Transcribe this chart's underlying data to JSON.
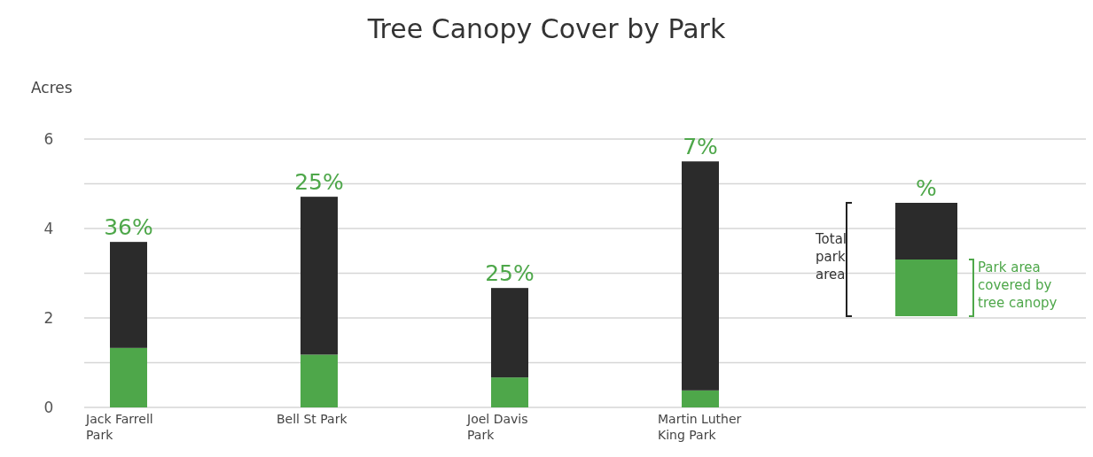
{
  "chart_data": {
    "type": "bar",
    "title": "Tree Canopy Cover by Park",
    "ylabel": "Acres",
    "stacked": true,
    "categories": [
      "Jack Farrell Park",
      "Bell St Park",
      "Joel Davis Park",
      "Martin Luther King Park"
    ],
    "series": [
      {
        "name": "Park area covered by tree canopy",
        "color": "#4ea74a",
        "values": [
          1.33,
          1.18,
          0.67,
          0.38
        ]
      },
      {
        "name": "Total park area",
        "color": "#2b2b2b",
        "values": [
          2.37,
          3.53,
          2.0,
          5.12
        ]
      }
    ],
    "ylim": [
      0,
      6
    ],
    "yticks": [
      0,
      {
        "value": 1,
        "label": null
      },
      2,
      {
        "value": 3,
        "label": null
      },
      4,
      {
        "value": 5,
        "label": null
      },
      6
    ],
    "grid": "y",
    "legend": "right",
    "annotations": [
      "%",
      {
        "text": "36%",
        "x": "Jack Farrell Park",
        "y": 3.7
      },
      {
        "text": "25%",
        "x": "Bell St Park",
        "y": 4.71
      },
      {
        "text": "25%",
        "x": "Joel Davis Park",
        "y": 2.67
      },
      {
        "text": "7%",
        "x": "Martin Luther King Park",
        "y": 5.5
      }
    ]
  }
}
